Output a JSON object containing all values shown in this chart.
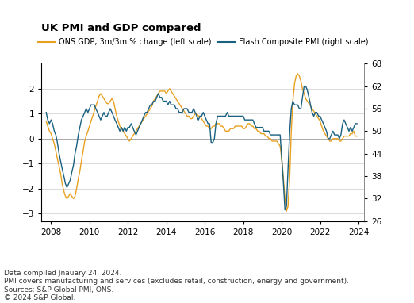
{
  "title": "UK PMI and GDP compared",
  "legend_gdp": "ONS GDP, 3m/3m % change (left scale)",
  "legend_pmi": "Flash Composite PMI (right scale)",
  "footer_lines": [
    "Data compiled Jnauary 24, 2024.",
    "PMI covers manufacturing and services (excludes retail, construction, energy and government).",
    "Sources: S&P Global PMI, ONS.",
    "© 2024 S&P Global."
  ],
  "gdp_color": "#E8A020",
  "pmi_color": "#1A6080",
  "left_ylim": [
    -3.3,
    3.0
  ],
  "right_ylim": [
    26,
    68
  ],
  "left_yticks": [
    -3.0,
    -2.0,
    -1.0,
    0.0,
    1.0,
    2.0
  ],
  "right_yticks": [
    26,
    32,
    38,
    44,
    50,
    56,
    62,
    68
  ],
  "xlim_start": 2007.5,
  "xlim_end": 2024.3,
  "xticks": [
    2008,
    2010,
    2012,
    2014,
    2016,
    2018,
    2020,
    2022,
    2024
  ],
  "gdp_data": [
    [
      2007.75,
      0.7
    ],
    [
      2007.83,
      0.5
    ],
    [
      2007.92,
      0.3
    ],
    [
      2008.0,
      0.2
    ],
    [
      2008.08,
      0.0
    ],
    [
      2008.17,
      -0.2
    ],
    [
      2008.25,
      -0.5
    ],
    [
      2008.33,
      -0.8
    ],
    [
      2008.42,
      -1.1
    ],
    [
      2008.5,
      -1.4
    ],
    [
      2008.58,
      -1.8
    ],
    [
      2008.67,
      -2.1
    ],
    [
      2008.75,
      -2.3
    ],
    [
      2008.83,
      -2.4
    ],
    [
      2008.92,
      -2.3
    ],
    [
      2009.0,
      -2.2
    ],
    [
      2009.08,
      -2.3
    ],
    [
      2009.17,
      -2.4
    ],
    [
      2009.25,
      -2.3
    ],
    [
      2009.33,
      -2.0
    ],
    [
      2009.42,
      -1.6
    ],
    [
      2009.5,
      -1.3
    ],
    [
      2009.58,
      -0.9
    ],
    [
      2009.67,
      -0.5
    ],
    [
      2009.75,
      -0.1
    ],
    [
      2009.83,
      0.1
    ],
    [
      2009.92,
      0.3
    ],
    [
      2010.0,
      0.5
    ],
    [
      2010.08,
      0.7
    ],
    [
      2010.17,
      0.9
    ],
    [
      2010.25,
      1.1
    ],
    [
      2010.33,
      1.3
    ],
    [
      2010.42,
      1.5
    ],
    [
      2010.5,
      1.7
    ],
    [
      2010.58,
      1.8
    ],
    [
      2010.67,
      1.7
    ],
    [
      2010.75,
      1.6
    ],
    [
      2010.83,
      1.5
    ],
    [
      2010.92,
      1.4
    ],
    [
      2011.0,
      1.4
    ],
    [
      2011.08,
      1.5
    ],
    [
      2011.17,
      1.6
    ],
    [
      2011.25,
      1.5
    ],
    [
      2011.33,
      1.2
    ],
    [
      2011.42,
      0.9
    ],
    [
      2011.5,
      0.7
    ],
    [
      2011.58,
      0.5
    ],
    [
      2011.67,
      0.4
    ],
    [
      2011.75,
      0.3
    ],
    [
      2011.83,
      0.2
    ],
    [
      2011.92,
      0.1
    ],
    [
      2012.0,
      0.0
    ],
    [
      2012.08,
      -0.1
    ],
    [
      2012.17,
      0.0
    ],
    [
      2012.25,
      0.1
    ],
    [
      2012.33,
      0.2
    ],
    [
      2012.42,
      0.3
    ],
    [
      2012.5,
      0.4
    ],
    [
      2012.58,
      0.5
    ],
    [
      2012.67,
      0.6
    ],
    [
      2012.75,
      0.7
    ],
    [
      2012.83,
      0.8
    ],
    [
      2012.92,
      0.9
    ],
    [
      2013.0,
      1.0
    ],
    [
      2013.08,
      1.1
    ],
    [
      2013.17,
      1.2
    ],
    [
      2013.25,
      1.3
    ],
    [
      2013.33,
      1.5
    ],
    [
      2013.42,
      1.6
    ],
    [
      2013.5,
      1.7
    ],
    [
      2013.58,
      1.8
    ],
    [
      2013.67,
      1.9
    ],
    [
      2013.75,
      1.9
    ],
    [
      2013.83,
      1.9
    ],
    [
      2013.92,
      1.9
    ],
    [
      2014.0,
      1.8
    ],
    [
      2014.08,
      1.9
    ],
    [
      2014.17,
      2.0
    ],
    [
      2014.25,
      1.9
    ],
    [
      2014.33,
      1.8
    ],
    [
      2014.42,
      1.7
    ],
    [
      2014.5,
      1.6
    ],
    [
      2014.58,
      1.5
    ],
    [
      2014.67,
      1.4
    ],
    [
      2014.75,
      1.3
    ],
    [
      2014.83,
      1.2
    ],
    [
      2014.92,
      1.1
    ],
    [
      2015.0,
      1.0
    ],
    [
      2015.08,
      0.9
    ],
    [
      2015.17,
      0.9
    ],
    [
      2015.25,
      0.8
    ],
    [
      2015.33,
      0.8
    ],
    [
      2015.42,
      0.9
    ],
    [
      2015.5,
      1.0
    ],
    [
      2015.58,
      1.0
    ],
    [
      2015.67,
      0.9
    ],
    [
      2015.75,
      0.9
    ],
    [
      2015.83,
      0.8
    ],
    [
      2015.92,
      0.7
    ],
    [
      2016.0,
      0.6
    ],
    [
      2016.08,
      0.5
    ],
    [
      2016.17,
      0.5
    ],
    [
      2016.25,
      0.4
    ],
    [
      2016.33,
      0.4
    ],
    [
      2016.42,
      0.5
    ],
    [
      2016.5,
      0.5
    ],
    [
      2016.58,
      0.6
    ],
    [
      2016.67,
      0.6
    ],
    [
      2016.75,
      0.6
    ],
    [
      2016.83,
      0.5
    ],
    [
      2016.92,
      0.5
    ],
    [
      2017.0,
      0.4
    ],
    [
      2017.08,
      0.3
    ],
    [
      2017.17,
      0.3
    ],
    [
      2017.25,
      0.3
    ],
    [
      2017.33,
      0.4
    ],
    [
      2017.42,
      0.4
    ],
    [
      2017.5,
      0.4
    ],
    [
      2017.58,
      0.5
    ],
    [
      2017.67,
      0.5
    ],
    [
      2017.75,
      0.5
    ],
    [
      2017.83,
      0.5
    ],
    [
      2017.92,
      0.5
    ],
    [
      2018.0,
      0.4
    ],
    [
      2018.08,
      0.4
    ],
    [
      2018.17,
      0.5
    ],
    [
      2018.25,
      0.6
    ],
    [
      2018.33,
      0.6
    ],
    [
      2018.42,
      0.5
    ],
    [
      2018.5,
      0.5
    ],
    [
      2018.58,
      0.4
    ],
    [
      2018.67,
      0.4
    ],
    [
      2018.75,
      0.3
    ],
    [
      2018.83,
      0.3
    ],
    [
      2018.92,
      0.2
    ],
    [
      2019.0,
      0.2
    ],
    [
      2019.08,
      0.2
    ],
    [
      2019.17,
      0.1
    ],
    [
      2019.25,
      0.1
    ],
    [
      2019.33,
      0.0
    ],
    [
      2019.42,
      0.0
    ],
    [
      2019.5,
      -0.1
    ],
    [
      2019.58,
      -0.1
    ],
    [
      2019.67,
      -0.1
    ],
    [
      2019.75,
      -0.1
    ],
    [
      2019.83,
      -0.2
    ],
    [
      2019.92,
      -0.3
    ],
    [
      2020.0,
      -0.8
    ],
    [
      2020.08,
      -1.5
    ],
    [
      2020.17,
      -2.4
    ],
    [
      2020.25,
      -2.9
    ],
    [
      2020.33,
      -2.7
    ],
    [
      2020.42,
      -1.5
    ],
    [
      2020.5,
      0.3
    ],
    [
      2020.58,
      1.5
    ],
    [
      2020.67,
      2.2
    ],
    [
      2020.75,
      2.5
    ],
    [
      2020.83,
      2.6
    ],
    [
      2020.92,
      2.5
    ],
    [
      2021.0,
      2.3
    ],
    [
      2021.08,
      2.0
    ],
    [
      2021.17,
      1.8
    ],
    [
      2021.25,
      1.6
    ],
    [
      2021.33,
      1.5
    ],
    [
      2021.42,
      1.4
    ],
    [
      2021.5,
      1.3
    ],
    [
      2021.58,
      1.2
    ],
    [
      2021.67,
      1.1
    ],
    [
      2021.75,
      1.0
    ],
    [
      2021.83,
      0.9
    ],
    [
      2021.92,
      0.8
    ],
    [
      2022.0,
      0.7
    ],
    [
      2022.08,
      0.5
    ],
    [
      2022.17,
      0.3
    ],
    [
      2022.25,
      0.2
    ],
    [
      2022.33,
      0.1
    ],
    [
      2022.42,
      0.0
    ],
    [
      2022.5,
      -0.1
    ],
    [
      2022.58,
      -0.1
    ],
    [
      2022.67,
      0.0
    ],
    [
      2022.75,
      0.0
    ],
    [
      2022.83,
      0.0
    ],
    [
      2022.92,
      0.0
    ],
    [
      2023.0,
      -0.1
    ],
    [
      2023.08,
      -0.1
    ],
    [
      2023.17,
      0.0
    ],
    [
      2023.25,
      0.1
    ],
    [
      2023.33,
      0.1
    ],
    [
      2023.42,
      0.1
    ],
    [
      2023.5,
      0.1
    ],
    [
      2023.58,
      0.2
    ],
    [
      2023.67,
      0.2
    ],
    [
      2023.75,
      0.3
    ],
    [
      2023.83,
      0.1
    ],
    [
      2023.92,
      0.1
    ]
  ],
  "pmi_data": [
    [
      2007.75,
      55
    ],
    [
      2007.83,
      53
    ],
    [
      2007.92,
      52
    ],
    [
      2008.0,
      53
    ],
    [
      2008.08,
      52
    ],
    [
      2008.17,
      50
    ],
    [
      2008.25,
      49
    ],
    [
      2008.33,
      47
    ],
    [
      2008.42,
      44
    ],
    [
      2008.5,
      42
    ],
    [
      2008.58,
      40
    ],
    [
      2008.67,
      38
    ],
    [
      2008.75,
      36
    ],
    [
      2008.83,
      35
    ],
    [
      2008.92,
      36
    ],
    [
      2009.0,
      37
    ],
    [
      2009.08,
      39
    ],
    [
      2009.17,
      41
    ],
    [
      2009.25,
      44
    ],
    [
      2009.33,
      46
    ],
    [
      2009.42,
      49
    ],
    [
      2009.5,
      51
    ],
    [
      2009.58,
      53
    ],
    [
      2009.67,
      54
    ],
    [
      2009.75,
      55
    ],
    [
      2009.83,
      56
    ],
    [
      2009.92,
      55
    ],
    [
      2010.0,
      56
    ],
    [
      2010.08,
      57
    ],
    [
      2010.17,
      57
    ],
    [
      2010.25,
      57
    ],
    [
      2010.33,
      56
    ],
    [
      2010.42,
      55
    ],
    [
      2010.5,
      54
    ],
    [
      2010.58,
      53
    ],
    [
      2010.67,
      54
    ],
    [
      2010.75,
      55
    ],
    [
      2010.83,
      54
    ],
    [
      2010.92,
      54
    ],
    [
      2011.0,
      55
    ],
    [
      2011.08,
      56
    ],
    [
      2011.17,
      55
    ],
    [
      2011.25,
      54
    ],
    [
      2011.33,
      53
    ],
    [
      2011.42,
      52
    ],
    [
      2011.5,
      51
    ],
    [
      2011.58,
      50
    ],
    [
      2011.67,
      51
    ],
    [
      2011.75,
      50
    ],
    [
      2011.83,
      51
    ],
    [
      2011.92,
      50
    ],
    [
      2012.0,
      51
    ],
    [
      2012.08,
      51
    ],
    [
      2012.17,
      52
    ],
    [
      2012.25,
      51
    ],
    [
      2012.33,
      50
    ],
    [
      2012.42,
      49
    ],
    [
      2012.5,
      50
    ],
    [
      2012.58,
      51
    ],
    [
      2012.67,
      52
    ],
    [
      2012.75,
      53
    ],
    [
      2012.83,
      54
    ],
    [
      2012.92,
      55
    ],
    [
      2013.0,
      55
    ],
    [
      2013.08,
      56
    ],
    [
      2013.17,
      57
    ],
    [
      2013.25,
      57
    ],
    [
      2013.33,
      58
    ],
    [
      2013.42,
      58
    ],
    [
      2013.5,
      59
    ],
    [
      2013.58,
      60
    ],
    [
      2013.67,
      59
    ],
    [
      2013.75,
      59
    ],
    [
      2013.83,
      58
    ],
    [
      2013.92,
      58
    ],
    [
      2014.0,
      58
    ],
    [
      2014.08,
      57
    ],
    [
      2014.17,
      58
    ],
    [
      2014.25,
      57
    ],
    [
      2014.33,
      57
    ],
    [
      2014.42,
      57
    ],
    [
      2014.5,
      56
    ],
    [
      2014.58,
      56
    ],
    [
      2014.67,
      55
    ],
    [
      2014.75,
      55
    ],
    [
      2014.83,
      55
    ],
    [
      2014.92,
      56
    ],
    [
      2015.0,
      56
    ],
    [
      2015.08,
      56
    ],
    [
      2015.17,
      55
    ],
    [
      2015.25,
      55
    ],
    [
      2015.33,
      55
    ],
    [
      2015.42,
      56
    ],
    [
      2015.5,
      55
    ],
    [
      2015.58,
      54
    ],
    [
      2015.67,
      53
    ],
    [
      2015.75,
      54
    ],
    [
      2015.83,
      54
    ],
    [
      2015.92,
      55
    ],
    [
      2016.0,
      54
    ],
    [
      2016.08,
      53
    ],
    [
      2016.17,
      52
    ],
    [
      2016.25,
      52
    ],
    [
      2016.33,
      47
    ],
    [
      2016.42,
      47
    ],
    [
      2016.5,
      48
    ],
    [
      2016.58,
      52
    ],
    [
      2016.67,
      54
    ],
    [
      2016.75,
      54
    ],
    [
      2016.83,
      54
    ],
    [
      2016.92,
      54
    ],
    [
      2017.0,
      54
    ],
    [
      2017.08,
      54
    ],
    [
      2017.17,
      55
    ],
    [
      2017.25,
      54
    ],
    [
      2017.33,
      54
    ],
    [
      2017.42,
      54
    ],
    [
      2017.5,
      54
    ],
    [
      2017.58,
      54
    ],
    [
      2017.67,
      54
    ],
    [
      2017.75,
      54
    ],
    [
      2017.83,
      54
    ],
    [
      2017.92,
      54
    ],
    [
      2018.0,
      54
    ],
    [
      2018.08,
      53
    ],
    [
      2018.17,
      53
    ],
    [
      2018.25,
      53
    ],
    [
      2018.33,
      53
    ],
    [
      2018.42,
      53
    ],
    [
      2018.5,
      53
    ],
    [
      2018.58,
      52
    ],
    [
      2018.67,
      51
    ],
    [
      2018.75,
      51
    ],
    [
      2018.83,
      51
    ],
    [
      2018.92,
      51
    ],
    [
      2019.0,
      51
    ],
    [
      2019.08,
      50
    ],
    [
      2019.17,
      50
    ],
    [
      2019.25,
      50
    ],
    [
      2019.33,
      50
    ],
    [
      2019.42,
      49
    ],
    [
      2019.5,
      49
    ],
    [
      2019.58,
      49
    ],
    [
      2019.67,
      49
    ],
    [
      2019.75,
      49
    ],
    [
      2019.83,
      49
    ],
    [
      2019.92,
      49
    ],
    [
      2020.0,
      43
    ],
    [
      2020.08,
      37
    ],
    [
      2020.17,
      29
    ],
    [
      2020.25,
      30
    ],
    [
      2020.33,
      40
    ],
    [
      2020.42,
      50
    ],
    [
      2020.5,
      56
    ],
    [
      2020.58,
      58
    ],
    [
      2020.67,
      57
    ],
    [
      2020.75,
      57
    ],
    [
      2020.83,
      57
    ],
    [
      2020.92,
      56
    ],
    [
      2021.0,
      56
    ],
    [
      2021.08,
      59
    ],
    [
      2021.17,
      62
    ],
    [
      2021.25,
      62
    ],
    [
      2021.33,
      61
    ],
    [
      2021.42,
      59
    ],
    [
      2021.5,
      57
    ],
    [
      2021.58,
      55
    ],
    [
      2021.67,
      54
    ],
    [
      2021.75,
      55
    ],
    [
      2021.83,
      55
    ],
    [
      2021.92,
      54
    ],
    [
      2022.0,
      54
    ],
    [
      2022.08,
      53
    ],
    [
      2022.17,
      52
    ],
    [
      2022.25,
      51
    ],
    [
      2022.33,
      50
    ],
    [
      2022.42,
      48
    ],
    [
      2022.5,
      48
    ],
    [
      2022.58,
      49
    ],
    [
      2022.67,
      50
    ],
    [
      2022.75,
      49
    ],
    [
      2022.83,
      49
    ],
    [
      2022.92,
      49
    ],
    [
      2023.0,
      48
    ],
    [
      2023.08,
      49
    ],
    [
      2023.17,
      52
    ],
    [
      2023.25,
      53
    ],
    [
      2023.33,
      52
    ],
    [
      2023.42,
      51
    ],
    [
      2023.5,
      50
    ],
    [
      2023.58,
      51
    ],
    [
      2023.67,
      50
    ],
    [
      2023.75,
      51
    ],
    [
      2023.83,
      52
    ],
    [
      2023.92,
      52
    ]
  ]
}
